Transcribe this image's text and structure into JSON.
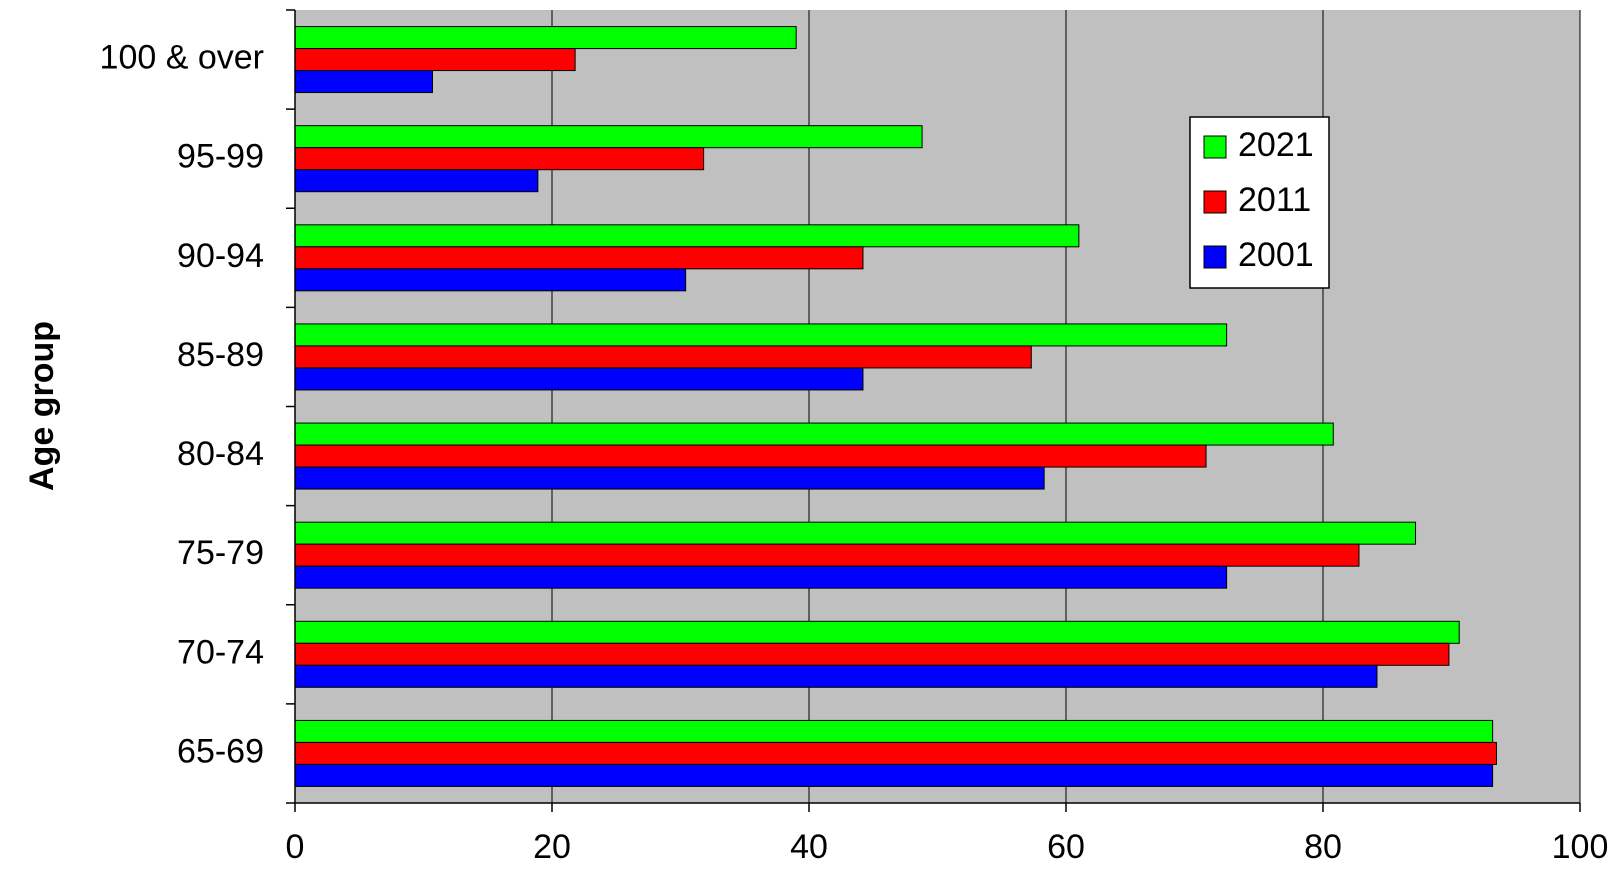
{
  "chart_data": {
    "type": "bar",
    "orientation": "horizontal",
    "title": "",
    "xlabel": "",
    "ylabel": "Age group",
    "xlim": [
      0,
      100
    ],
    "x_ticks": [
      0,
      20,
      40,
      60,
      80,
      100
    ],
    "grid": "vertical",
    "legend_position": "top-right",
    "categories": [
      "100 & over",
      "95-99",
      "90-94",
      "85-89",
      "80-84",
      "75-79",
      "70-74",
      "65-69"
    ],
    "series": [
      {
        "name": "2021",
        "color": "#00ff00",
        "values": [
          39,
          48.8,
          61,
          72.5,
          80.8,
          87.2,
          90.6,
          93.2
        ]
      },
      {
        "name": "2011",
        "color": "#ff0000",
        "values": [
          21.8,
          31.8,
          44.2,
          57.3,
          70.9,
          82.8,
          89.8,
          93.5
        ]
      },
      {
        "name": "2001",
        "color": "#0000ff",
        "values": [
          10.7,
          18.9,
          30.4,
          44.2,
          58.3,
          72.5,
          84.2,
          93.2
        ]
      }
    ],
    "colors": {
      "plot_background": "#c0c0c0",
      "gridline": "#000000",
      "bar_outline": "#000000"
    }
  }
}
